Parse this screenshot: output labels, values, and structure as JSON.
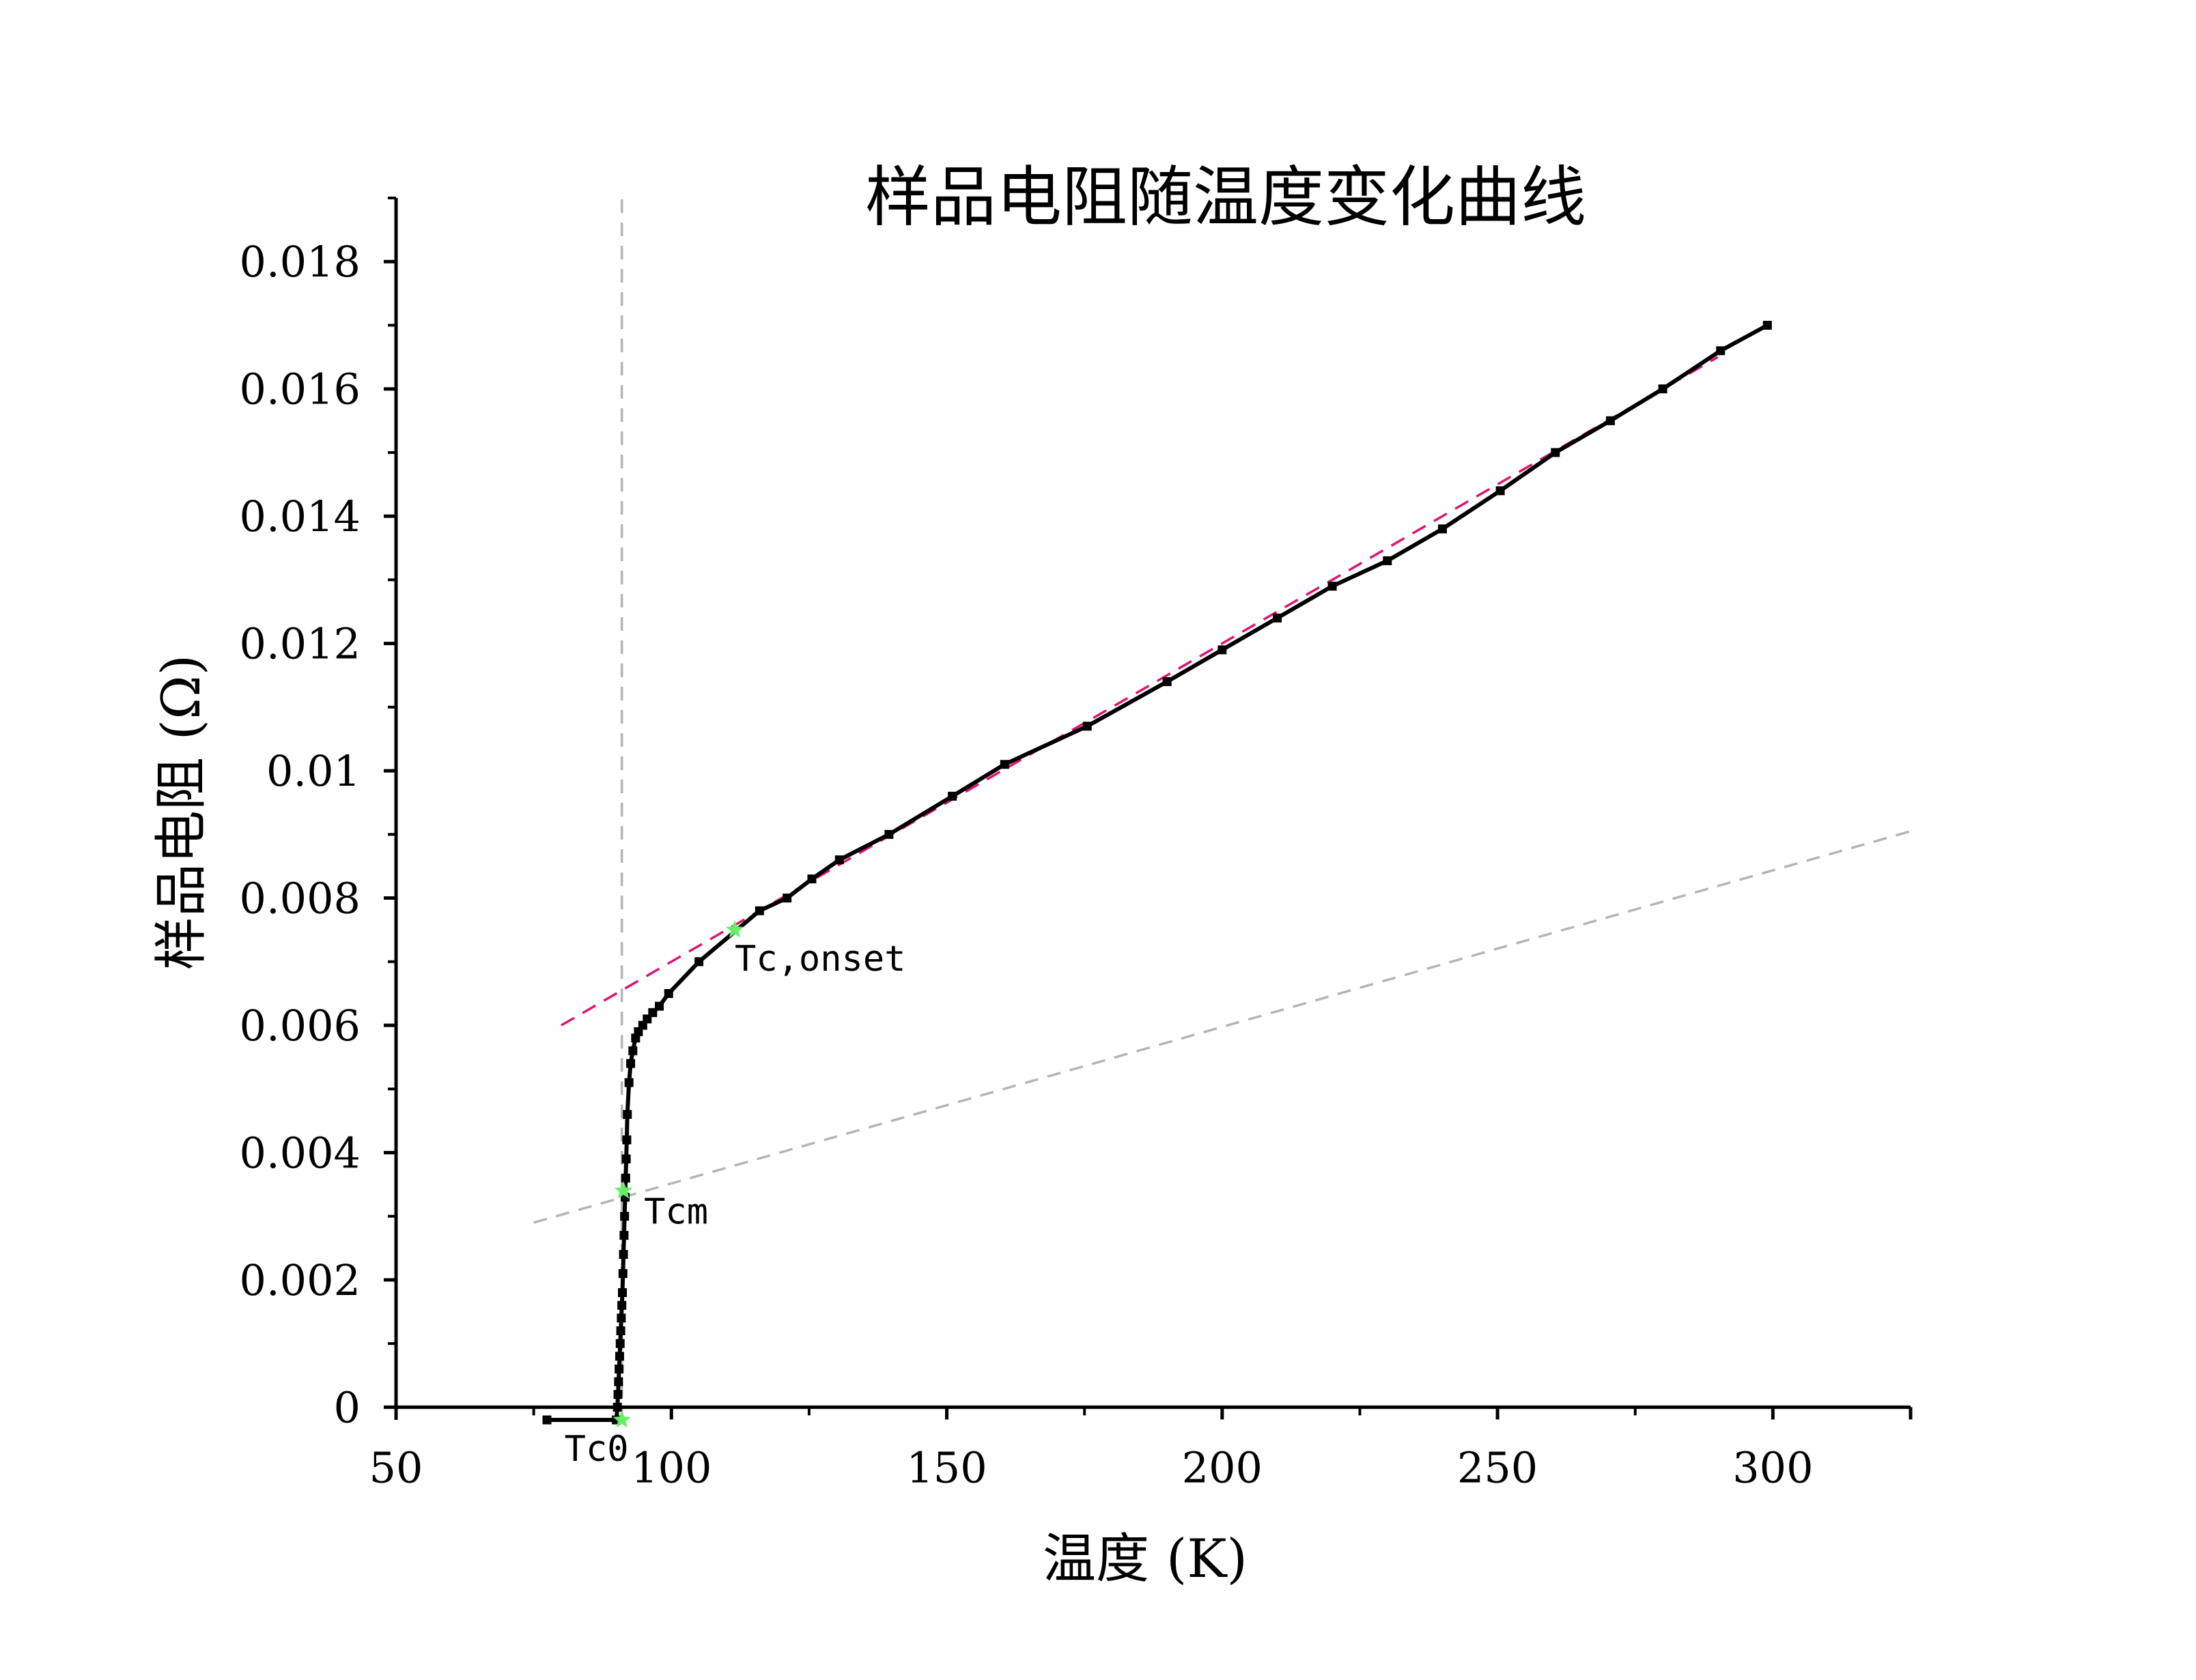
{
  "chart_data": {
    "type": "line",
    "title": "样品电阻随温度变化曲线",
    "xlabel": "温度 (K)",
    "ylabel": "样品电阻 (Ω)",
    "xlim": [
      50,
      325
    ],
    "ylim": [
      -0.0002,
      0.019
    ],
    "x_ticks": [
      50,
      100,
      150,
      200,
      250,
      300
    ],
    "x_tick_labels": [
      "50",
      "100",
      "150",
      "200",
      "250",
      "300"
    ],
    "y_ticks": [
      0,
      0.002,
      0.004,
      0.006,
      0.008,
      0.01,
      0.012,
      0.014,
      0.016,
      0.018
    ],
    "y_tick_labels": [
      "0",
      "0.002",
      "0.004",
      "0.006",
      "0.008",
      "0.01",
      "0.012",
      "0.014",
      "0.016",
      "0.018"
    ],
    "grid": false,
    "colors": {
      "data": "#000000",
      "fit_line": "#e0136f",
      "guide_line": "#b4b4b4",
      "marker": "#66ee66"
    },
    "series": [
      {
        "x": [
          77.4,
          90.0,
          90.2,
          90.3,
          90.4,
          90.5,
          90.6,
          90.7,
          90.8,
          90.9,
          91.0,
          91.1,
          91.2,
          91.3,
          91.4,
          91.5,
          91.6,
          91.7,
          91.8,
          91.9,
          92.0,
          92.3,
          92.6,
          93.0,
          93.5,
          94.0,
          94.8,
          95.6,
          96.6,
          97.8,
          99.5,
          105.0,
          116.0,
          121.0,
          125.5,
          130.5,
          139.5,
          151.0,
          160.5,
          175.5,
          190.0,
          200.0,
          210.0,
          220.0,
          230.0,
          240.0,
          250.5,
          260.5,
          270.5,
          280.0,
          290.5,
          299.0
        ],
        "y": [
          -0.0002,
          -0.0002,
          0.0,
          0.0002,
          0.0004,
          0.0006,
          0.0008,
          0.001,
          0.0012,
          0.0014,
          0.0016,
          0.0018,
          0.0021,
          0.0024,
          0.0027,
          0.003,
          0.0033,
          0.0036,
          0.0039,
          0.0042,
          0.0046,
          0.0051,
          0.0054,
          0.0056,
          0.0058,
          0.0059,
          0.006,
          0.0061,
          0.0062,
          0.0063,
          0.0065,
          0.007,
          0.0078,
          0.008,
          0.0083,
          0.0086,
          0.009,
          0.0096,
          0.0101,
          0.0107,
          0.0114,
          0.0119,
          0.0124,
          0.0129,
          0.0133,
          0.0138,
          0.0144,
          0.015,
          0.0155,
          0.016,
          0.0166,
          0.017
        ]
      }
    ],
    "reference_lines": [
      {
        "kind": "fit",
        "x": [
          80,
          290
        ],
        "y": [
          0.006,
          0.0165
        ]
      },
      {
        "kind": "guide",
        "x": [
          75,
          325
        ],
        "y": [
          0.0029,
          0.00905
        ]
      },
      {
        "kind": "vertical",
        "x": [
          91,
          91
        ],
        "y": [
          -0.0002,
          0.019
        ]
      }
    ],
    "annotations": [
      {
        "label": "Tc,onset",
        "x": 111.5,
        "y": 0.0075
      },
      {
        "label": "Tcm",
        "x": 91.3,
        "y": 0.0034
      },
      {
        "label": "Tc0",
        "x": 91.0,
        "y": -0.0002
      }
    ]
  }
}
